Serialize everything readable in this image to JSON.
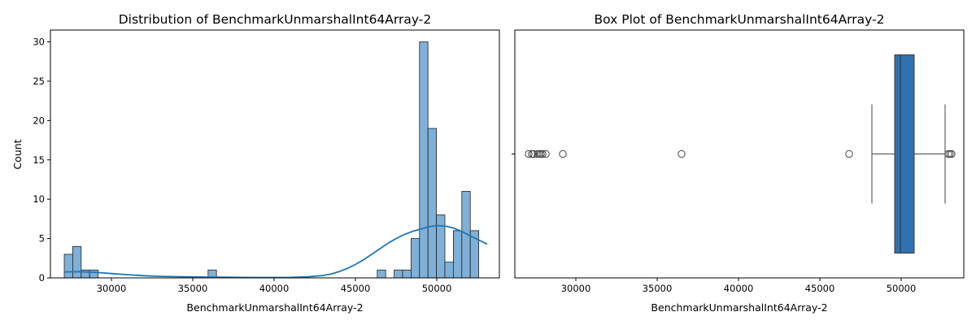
{
  "chart_data": [
    {
      "type": "histogram",
      "title": "Distribution of BenchmarkUnmarshalInt64Array-2",
      "xlabel": "BenchmarkUnmarshalInt64Array-2",
      "ylabel": "Count",
      "xlim": [
        26250,
        53850
      ],
      "ylim": [
        0,
        31.5
      ],
      "xticks": [
        30000,
        35000,
        40000,
        45000,
        50000
      ],
      "yticks": [
        0,
        5,
        10,
        15,
        20,
        25,
        30
      ],
      "bin_edges": [
        27100,
        27620,
        28140,
        28660,
        29180,
        29700,
        30220,
        30740,
        31260,
        31780,
        32300,
        32820,
        33340,
        33860,
        34380,
        34900,
        35420,
        35940,
        36460,
        36980,
        37500,
        38020,
        38540,
        39060,
        39580,
        40100,
        40620,
        41140,
        41660,
        42180,
        42700,
        43220,
        43740,
        44260,
        44780,
        45300,
        45820,
        46340,
        46860,
        47380,
        47900,
        48420,
        48940,
        49460,
        49980,
        50500,
        51020,
        51540,
        52060,
        52580,
        53100
      ],
      "counts": [
        3,
        4,
        1,
        1,
        0,
        0,
        0,
        0,
        0,
        0,
        0,
        0,
        0,
        0,
        0,
        0,
        0,
        1,
        0,
        0,
        0,
        0,
        0,
        0,
        0,
        0,
        0,
        0,
        0,
        0,
        0,
        0,
        0,
        0,
        0,
        0,
        0,
        1,
        0,
        1,
        1,
        5,
        30,
        19,
        8,
        2,
        6,
        11,
        6,
        0
      ],
      "bar_color": "#7fb0d8",
      "kde": {
        "color": "#1f77b4",
        "x": [
          27100,
          28000,
          29000,
          30000,
          31000,
          32000,
          33000,
          34000,
          35000,
          36000,
          37000,
          38000,
          39000,
          40000,
          41000,
          42000,
          43000,
          43500,
          44000,
          44500,
          45000,
          45500,
          46000,
          46500,
          47000,
          47500,
          48000,
          48500,
          49000,
          49500,
          50000,
          50500,
          51000,
          51500,
          52000,
          52500,
          53100
        ],
        "y": [
          0.75,
          0.8,
          0.7,
          0.55,
          0.4,
          0.28,
          0.2,
          0.15,
          0.12,
          0.1,
          0.08,
          0.06,
          0.05,
          0.05,
          0.06,
          0.12,
          0.3,
          0.5,
          0.8,
          1.2,
          1.7,
          2.3,
          3.0,
          3.7,
          4.4,
          5.0,
          5.5,
          5.9,
          6.2,
          6.5,
          6.65,
          6.6,
          6.35,
          5.95,
          5.4,
          4.9,
          4.3
        ]
      }
    },
    {
      "type": "box",
      "title": "Box Plot of BenchmarkUnmarshalInt64Array-2",
      "xlabel": "BenchmarkUnmarshalInt64Array-2",
      "xlim": [
        26250,
        53850
      ],
      "xticks": [
        30000,
        35000,
        40000,
        45000,
        50000
      ],
      "box_color": "#2e72b1",
      "whisker_low": 48200,
      "q1": 49600,
      "median": 49950,
      "q3": 50800,
      "whisker_high": 52700,
      "outliers": [
        27100,
        27300,
        27400,
        27650,
        27750,
        27850,
        27950,
        28150,
        29200,
        36500,
        46800,
        52900,
        53000,
        53100
      ]
    }
  ]
}
